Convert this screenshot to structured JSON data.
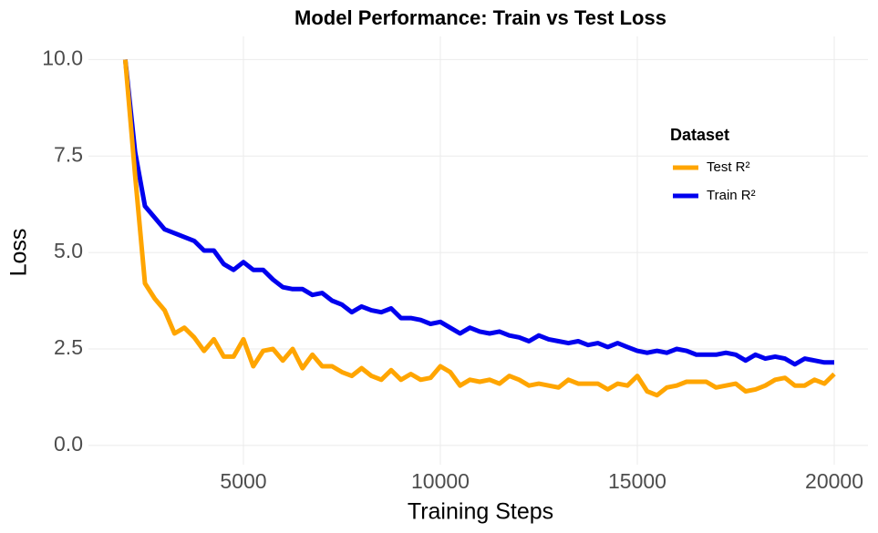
{
  "chart_data": {
    "type": "line",
    "title": "Model Performance: Train vs Test Loss",
    "x_label": "Training Steps",
    "y_label": "Loss",
    "x": [
      2000,
      2250,
      2500,
      2750,
      3000,
      3250,
      3500,
      3750,
      4000,
      4250,
      4500,
      4750,
      5000,
      5250,
      5500,
      5750,
      6000,
      6250,
      6500,
      6750,
      7000,
      7250,
      7500,
      7750,
      8000,
      8250,
      8500,
      8750,
      9000,
      9250,
      9500,
      9750,
      10000,
      10250,
      10500,
      10750,
      11000,
      11250,
      11500,
      11750,
      12000,
      12250,
      12500,
      12750,
      13000,
      13250,
      13500,
      13750,
      14000,
      14250,
      14500,
      14750,
      15000,
      15250,
      15500,
      15750,
      16000,
      16250,
      16500,
      16750,
      17000,
      17250,
      17500,
      17750,
      18000,
      18250,
      18500,
      18750,
      19000,
      19250,
      19500,
      19750,
      20000
    ],
    "series": [
      {
        "name": "Test R²",
        "color": "#FFA500",
        "values": [
          10.0,
          7.0,
          4.2,
          3.8,
          3.5,
          2.9,
          3.05,
          2.8,
          2.45,
          2.75,
          2.3,
          2.3,
          2.75,
          2.05,
          2.45,
          2.5,
          2.2,
          2.5,
          2.0,
          2.35,
          2.05,
          2.05,
          1.9,
          1.8,
          2.0,
          1.8,
          1.7,
          1.95,
          1.7,
          1.85,
          1.7,
          1.75,
          2.05,
          1.9,
          1.55,
          1.7,
          1.65,
          1.7,
          1.6,
          1.8,
          1.7,
          1.55,
          1.6,
          1.55,
          1.5,
          1.7,
          1.6,
          1.6,
          1.6,
          1.45,
          1.6,
          1.55,
          1.8,
          1.4,
          1.3,
          1.5,
          1.55,
          1.65,
          1.65,
          1.65,
          1.5,
          1.55,
          1.6,
          1.4,
          1.45,
          1.55,
          1.7,
          1.75,
          1.55,
          1.55,
          1.7,
          1.6,
          1.85
        ]
      },
      {
        "name": "Train R²",
        "color": "#0000EE",
        "values": [
          10.0,
          7.6,
          6.2,
          5.9,
          5.6,
          5.5,
          5.4,
          5.3,
          5.05,
          5.05,
          4.7,
          4.55,
          4.75,
          4.55,
          4.55,
          4.3,
          4.1,
          4.05,
          4.05,
          3.9,
          3.95,
          3.75,
          3.65,
          3.45,
          3.6,
          3.5,
          3.45,
          3.55,
          3.3,
          3.3,
          3.25,
          3.15,
          3.2,
          3.05,
          2.9,
          3.05,
          2.95,
          2.9,
          2.95,
          2.85,
          2.8,
          2.7,
          2.85,
          2.75,
          2.7,
          2.65,
          2.7,
          2.6,
          2.65,
          2.55,
          2.65,
          2.55,
          2.45,
          2.4,
          2.45,
          2.4,
          2.5,
          2.45,
          2.35,
          2.35,
          2.35,
          2.4,
          2.35,
          2.2,
          2.35,
          2.25,
          2.3,
          2.25,
          2.1,
          2.25,
          2.2,
          2.15,
          2.15
        ]
      }
    ],
    "xlim": [
      1065,
      20856
    ],
    "xticks": [
      5000,
      10000,
      15000,
      20000
    ],
    "ylim": [
      -0.5,
      10.6
    ],
    "yticks": [
      {
        "value": 0,
        "label": "0.0"
      },
      {
        "value": 2.5,
        "label": "2.5"
      },
      {
        "value": 5,
        "label": "5.0"
      },
      {
        "value": 7.5,
        "label": "7.5"
      },
      {
        "value": 10,
        "label": "10.0"
      }
    ],
    "grid": true,
    "legend_title": "Dataset",
    "legend": "upper right"
  }
}
